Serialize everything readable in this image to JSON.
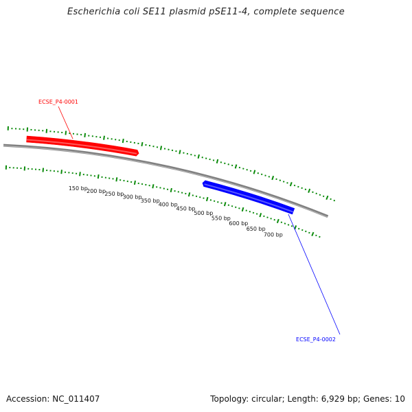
{
  "title": "Escherichia coli SE11 plasmid pSE11-4, complete sequence",
  "footer": {
    "accession": "Accession: NC_011407",
    "summary": "Topology: circular; Length: 6,929 bp; Genes: 10"
  },
  "plasmid": {
    "length_bp": 6929,
    "tick_labels": [
      "150 bp",
      "200 bp",
      "250 bp",
      "300 bp",
      "350 bp",
      "400 bp",
      "450 bp",
      "500 bp",
      "550 bp",
      "600 bp",
      "650 bp",
      "700 bp"
    ],
    "tick_values": [
      150,
      200,
      250,
      300,
      350,
      400,
      450,
      500,
      550,
      600,
      650,
      700
    ]
  },
  "genes": [
    {
      "name": "ECSE_P4-0001",
      "strand": "forward",
      "start_bp": 0,
      "end_bp": 296,
      "color": "#ff0000"
    },
    {
      "name": "ECSE_P4-0002",
      "strand": "reverse",
      "start_bp": 477,
      "end_bp": 730,
      "color": "#0000ff"
    }
  ],
  "colors": {
    "backbone": "#808080",
    "tick": "#0a8a0a",
    "forward_gene": "#ff0000",
    "reverse_gene": "#0000ff"
  }
}
